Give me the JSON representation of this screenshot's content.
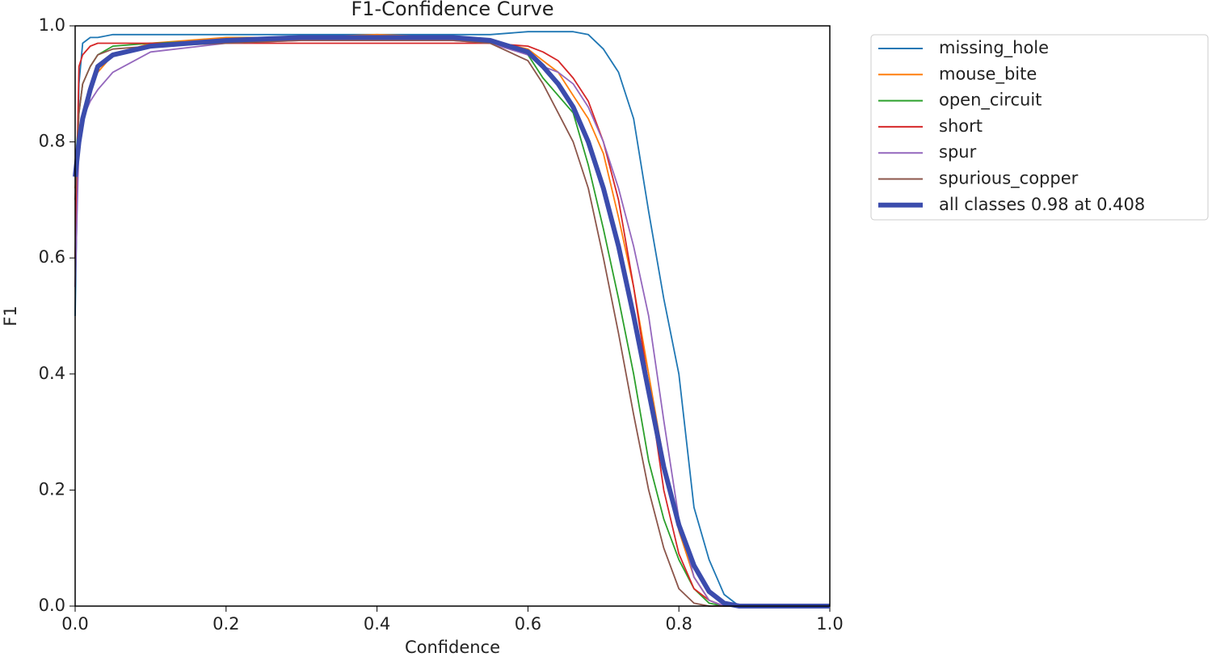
{
  "chart_data": {
    "type": "line",
    "title": "F1-Confidence Curve",
    "xlabel": "Confidence",
    "ylabel": "F1",
    "x": [
      0,
      0.005,
      0.01,
      0.02,
      0.03,
      0.05,
      0.1,
      0.2,
      0.3,
      0.4,
      0.5,
      0.55,
      0.6,
      0.62,
      0.64,
      0.66,
      0.68,
      0.7,
      0.72,
      0.74,
      0.76,
      0.78,
      0.8,
      0.82,
      0.84,
      0.86,
      0.88,
      0.9,
      1.0
    ],
    "series": [
      {
        "name": "missing_hole",
        "color": "#1f77b4",
        "values": [
          0.5,
          0.9,
          0.97,
          0.98,
          0.98,
          0.985,
          0.985,
          0.985,
          0.985,
          0.985,
          0.985,
          0.985,
          0.99,
          0.99,
          0.99,
          0.99,
          0.985,
          0.96,
          0.92,
          0.84,
          0.68,
          0.53,
          0.4,
          0.17,
          0.08,
          0.02,
          0,
          0,
          0
        ]
      },
      {
        "name": "mouse_bite",
        "color": "#ff7f0e",
        "values": [
          0.72,
          0.8,
          0.85,
          0.89,
          0.92,
          0.95,
          0.97,
          0.98,
          0.98,
          0.985,
          0.98,
          0.975,
          0.96,
          0.94,
          0.92,
          0.88,
          0.84,
          0.78,
          0.67,
          0.55,
          0.4,
          0.25,
          0.13,
          0.05,
          0.01,
          0,
          0,
          0,
          0
        ]
      },
      {
        "name": "open_circuit",
        "color": "#2ca02c",
        "values": [
          0.75,
          0.85,
          0.9,
          0.93,
          0.95,
          0.965,
          0.97,
          0.975,
          0.98,
          0.98,
          0.98,
          0.975,
          0.95,
          0.91,
          0.88,
          0.85,
          0.76,
          0.65,
          0.53,
          0.4,
          0.25,
          0.15,
          0.08,
          0.03,
          0.005,
          0,
          0,
          0,
          0
        ]
      },
      {
        "name": "short",
        "color": "#d62728",
        "values": [
          0.6,
          0.93,
          0.95,
          0.965,
          0.97,
          0.97,
          0.97,
          0.97,
          0.97,
          0.97,
          0.97,
          0.97,
          0.965,
          0.955,
          0.94,
          0.91,
          0.87,
          0.8,
          0.7,
          0.55,
          0.38,
          0.2,
          0.09,
          0.03,
          0.01,
          0,
          0,
          0,
          0
        ]
      },
      {
        "name": "spur",
        "color": "#9467bd",
        "values": [
          0.55,
          0.8,
          0.84,
          0.87,
          0.89,
          0.92,
          0.955,
          0.97,
          0.975,
          0.975,
          0.975,
          0.97,
          0.95,
          0.93,
          0.92,
          0.9,
          0.86,
          0.8,
          0.72,
          0.62,
          0.5,
          0.32,
          0.15,
          0.05,
          0.01,
          0,
          0,
          0,
          0
        ]
      },
      {
        "name": "spurious_copper",
        "color": "#8c564b",
        "values": [
          0.7,
          0.85,
          0.9,
          0.93,
          0.95,
          0.96,
          0.965,
          0.97,
          0.975,
          0.975,
          0.975,
          0.97,
          0.94,
          0.9,
          0.85,
          0.8,
          0.72,
          0.6,
          0.47,
          0.33,
          0.2,
          0.1,
          0.03,
          0.005,
          0,
          0,
          0,
          0,
          0
        ]
      },
      {
        "name": "all classes 0.98 at 0.408",
        "color": "#3b4cad",
        "values": [
          0.74,
          0.8,
          0.84,
          0.89,
          0.93,
          0.95,
          0.965,
          0.975,
          0.98,
          0.98,
          0.98,
          0.975,
          0.955,
          0.93,
          0.9,
          0.86,
          0.8,
          0.72,
          0.62,
          0.5,
          0.37,
          0.24,
          0.14,
          0.07,
          0.025,
          0.005,
          0,
          0,
          0
        ]
      }
    ],
    "xlim": [
      0,
      1
    ],
    "ylim": [
      0,
      1
    ],
    "xticks": [
      {
        "value": 0,
        "label": "0.0"
      },
      0.2,
      0.4,
      0.6,
      0.8,
      {
        "value": 1,
        "label": "1.0"
      }
    ],
    "yticks": [
      {
        "value": 0,
        "label": "0.0"
      },
      0.2,
      0.4,
      0.6,
      0.8,
      {
        "value": 1,
        "label": "1.0"
      }
    ],
    "legend": "outside-right"
  }
}
